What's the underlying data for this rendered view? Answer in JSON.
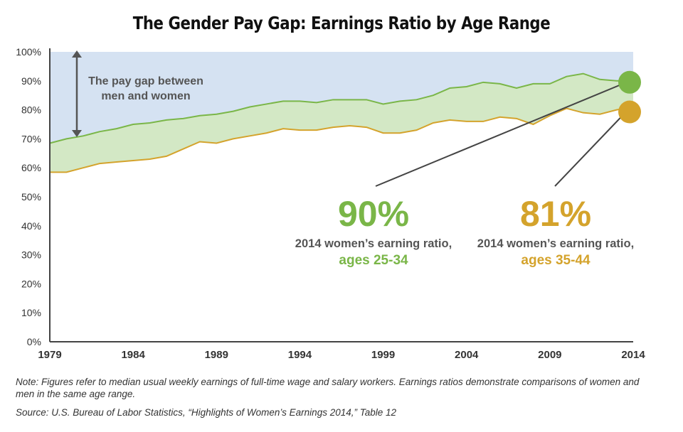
{
  "chart_data": {
    "type": "area",
    "title": "The Gender Pay Gap: Earnings Ratio by Age Range",
    "x": [
      1979,
      1980,
      1981,
      1982,
      1983,
      1984,
      1985,
      1986,
      1987,
      1988,
      1989,
      1990,
      1991,
      1992,
      1993,
      1994,
      1995,
      1996,
      1997,
      1998,
      1999,
      2000,
      2001,
      2002,
      2003,
      2004,
      2005,
      2006,
      2007,
      2008,
      2009,
      2010,
      2011,
      2012,
      2013,
      2014
    ],
    "series": [
      {
        "name": "ages 25-34",
        "color": "#7ab648",
        "values": [
          68.5,
          70,
          71,
          72.5,
          73.5,
          75,
          75.5,
          76.5,
          77,
          78,
          78.5,
          79.5,
          81,
          82,
          83,
          83,
          82.5,
          83.5,
          83.5,
          83.5,
          82,
          83,
          83.5,
          85,
          87.5,
          88,
          89.5,
          89,
          87.5,
          89,
          89,
          91.5,
          92.5,
          90.5,
          90,
          90
        ]
      },
      {
        "name": "ages 35-44",
        "color": "#d4a32c",
        "values": [
          58.5,
          58.5,
          60,
          61.5,
          62,
          62.5,
          63,
          64,
          66.5,
          69,
          68.5,
          70,
          71,
          72,
          73.5,
          73,
          73,
          74,
          74.5,
          74,
          72,
          72,
          73,
          75.5,
          76.5,
          76,
          76,
          77.5,
          77,
          75,
          78,
          80.5,
          79,
          78.5,
          80,
          81
        ]
      }
    ],
    "ylim": [
      0,
      100
    ],
    "yticks": [
      "0%",
      "10%",
      "20%",
      "30%",
      "40%",
      "50%",
      "60%",
      "70%",
      "80%",
      "90%",
      "100%"
    ],
    "xticks": [
      "1979",
      "1984",
      "1989",
      "1994",
      "1999",
      "2004",
      "2009",
      "2014"
    ],
    "gap_fill_color": "#d5e2f2",
    "band_fill_color": "#d3e8c5",
    "annotations": {
      "gap_label": [
        "The pay gap between",
        "men and women"
      ],
      "green_value": "90%",
      "green_desc": "2014 women’s earning ratio,",
      "green_ages": "ages 25-34",
      "gold_value": "81%",
      "gold_desc": "2014 women’s earning ratio,",
      "gold_ages": "ages 35-44"
    }
  },
  "note": "Note: Figures refer to median usual weekly earnings of full-time wage and salary workers. Earnings ratios demonstrate comparisons of women and men in the same age range.",
  "source": "Source: U.S. Bureau of Labor Statistics, “Highlights of Women’s Earnings 2014,” Table 12"
}
